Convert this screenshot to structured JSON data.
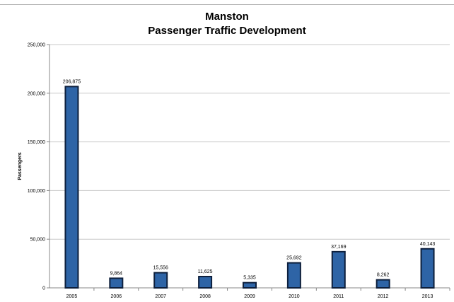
{
  "chart_data": {
    "type": "bar",
    "title": "Manston",
    "subtitle": "Passenger Traffic Development",
    "xlabel": "",
    "ylabel": "Passengers",
    "categories": [
      "2005",
      "2006",
      "2007",
      "2008",
      "2009",
      "2010",
      "2011",
      "2012",
      "2013"
    ],
    "values": [
      206875,
      9864,
      15556,
      11625,
      5335,
      25692,
      37169,
      8262,
      40143
    ],
    "data_labels": [
      "206,875",
      "9,864",
      "15,556",
      "11,625",
      "5,335",
      "25,692",
      "37,169",
      "8,262",
      "40,143"
    ],
    "ylim": [
      0,
      250000
    ],
    "yticks": [
      0,
      50000,
      100000,
      150000,
      200000,
      250000
    ],
    "ytick_labels": [
      "0",
      "50,000",
      "100,000",
      "150,000",
      "200,000",
      "250,000"
    ],
    "grid": true,
    "bar_color": "#2e64a6",
    "bar_edge_color": "#0d1f3c",
    "grid_color": "#c8c8c8"
  }
}
